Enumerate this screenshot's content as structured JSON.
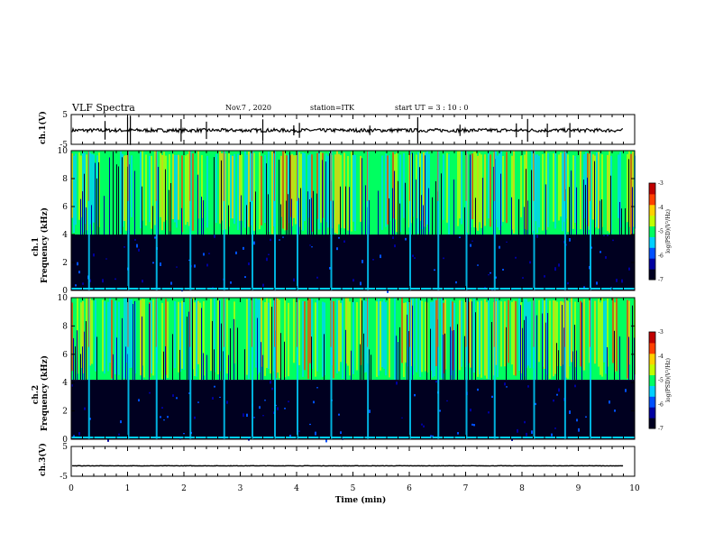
{
  "header": {
    "title": "VLF Spectra",
    "date": "Nov.7 , 2020",
    "station": "station=ITK",
    "start": "start UT = 3 : 10 : 0"
  },
  "chart_data": [
    {
      "type": "line",
      "panel": "ch1-waveform",
      "ylabel": "ch.1(V)",
      "ylim": [
        -5,
        5
      ],
      "yticks": [
        "5",
        "-5"
      ],
      "xlim": [
        0,
        10
      ],
      "series": [
        {
          "values": [
            -0.3,
            -0.2,
            -0.35,
            -0.25,
            -0.3
          ]
        }
      ],
      "note_spikes_x_min": [
        0.6,
        1.0,
        1.05,
        1.95,
        2.4,
        3.4,
        3.95,
        4.05,
        5.3,
        6.15,
        6.9,
        7.9,
        8.1,
        8.45,
        8.85
      ]
    },
    {
      "type": "heatmap",
      "panel": "ch1-spectrogram",
      "ylabel": "ch.1 Frequency (kHz)",
      "ylim": [
        0,
        10
      ],
      "yticks": [
        "0",
        "2",
        "4",
        "6",
        "8",
        "10"
      ],
      "xlim": [
        0,
        10
      ],
      "colorbar": {
        "label": "log(PSD)(V²/Hz)",
        "range": [
          -7,
          -3
        ],
        "ticks": [
          "-3",
          "-4",
          "-5",
          "-6",
          "-7"
        ]
      },
      "low_noise_band_khz": [
        0,
        4.0
      ],
      "bright_cols_min": [
        0.3,
        1.0,
        1.5,
        2.1,
        2.7,
        3.2,
        3.6,
        4.0,
        4.6,
        5.25,
        6.0,
        6.5,
        7.0,
        7.5,
        8.2,
        8.75,
        9.2
      ]
    },
    {
      "type": "heatmap",
      "panel": "ch2-spectrogram",
      "ylabel": "ch.2 Frequency (kHz)",
      "ylim": [
        0,
        10
      ],
      "yticks": [
        "0",
        "2",
        "4",
        "6",
        "8",
        "10"
      ],
      "xlim": [
        0,
        10
      ],
      "colorbar": {
        "label": "log(PSD)(V²/Hz)",
        "range": [
          -7,
          -3
        ],
        "ticks": [
          "-3",
          "-4",
          "-5",
          "-6",
          "-7"
        ]
      },
      "low_noise_band_khz": [
        0,
        4.2
      ],
      "bright_cols_min": [
        0.3,
        1.0,
        1.5,
        2.1,
        2.7,
        3.2,
        3.6,
        4.0,
        4.6,
        5.25,
        6.0,
        6.5,
        7.0,
        7.5,
        8.2,
        8.75,
        9.2
      ]
    },
    {
      "type": "line",
      "panel": "ch3-waveform",
      "ylabel": "ch.3(V)",
      "ylim": [
        -5,
        5
      ],
      "yticks": [
        "5",
        "-5"
      ],
      "xlim": [
        0,
        10
      ],
      "xticks": [
        "0",
        "1",
        "2",
        "3",
        "4",
        "5",
        "6",
        "7",
        "8",
        "9",
        "10"
      ],
      "xlabel": "Time (min)",
      "data_end_min": 9.8,
      "series": [
        {
          "values": [
            -1.5,
            -1.5,
            -1.5,
            -1.5,
            -1.5
          ]
        }
      ]
    }
  ],
  "colors": {
    "colormap": [
      "#000020",
      "#0000a0",
      "#0050ff",
      "#00d0ff",
      "#00ff60",
      "#c0ff00",
      "#ffd000",
      "#ff4000",
      "#c00000"
    ]
  }
}
